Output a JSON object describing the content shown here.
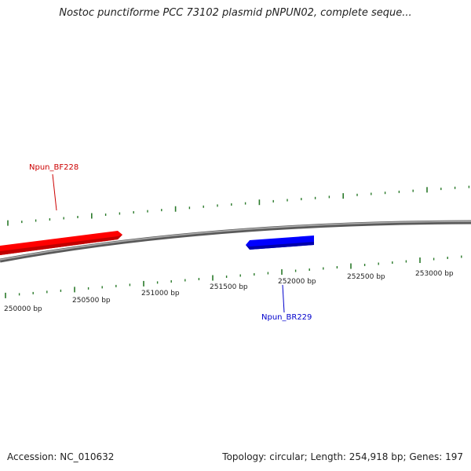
{
  "title": "Nostoc punctiforme PCC 73102 plasmid pNPUN02, complete seque...",
  "footer": {
    "accession": "Accession: NC_010632",
    "summary": "Topology: circular; Length: 254,918 bp; Genes: 197"
  },
  "colors": {
    "forward_gene": "#ff0000",
    "reverse_gene": "#0000ff",
    "backbone": "#808080",
    "ticks": "#2a7a2a"
  },
  "ruler": {
    "labels": [
      "250000 bp",
      "250500 bp",
      "251000 bp",
      "251500 bp",
      "252000 bp",
      "252500 bp",
      "253000 bp"
    ]
  },
  "genes": [
    {
      "id": "forward",
      "label": "Npun_BF228",
      "strand": "forward"
    },
    {
      "id": "reverse",
      "label": "Npun_BR229",
      "strand": "reverse"
    }
  ]
}
